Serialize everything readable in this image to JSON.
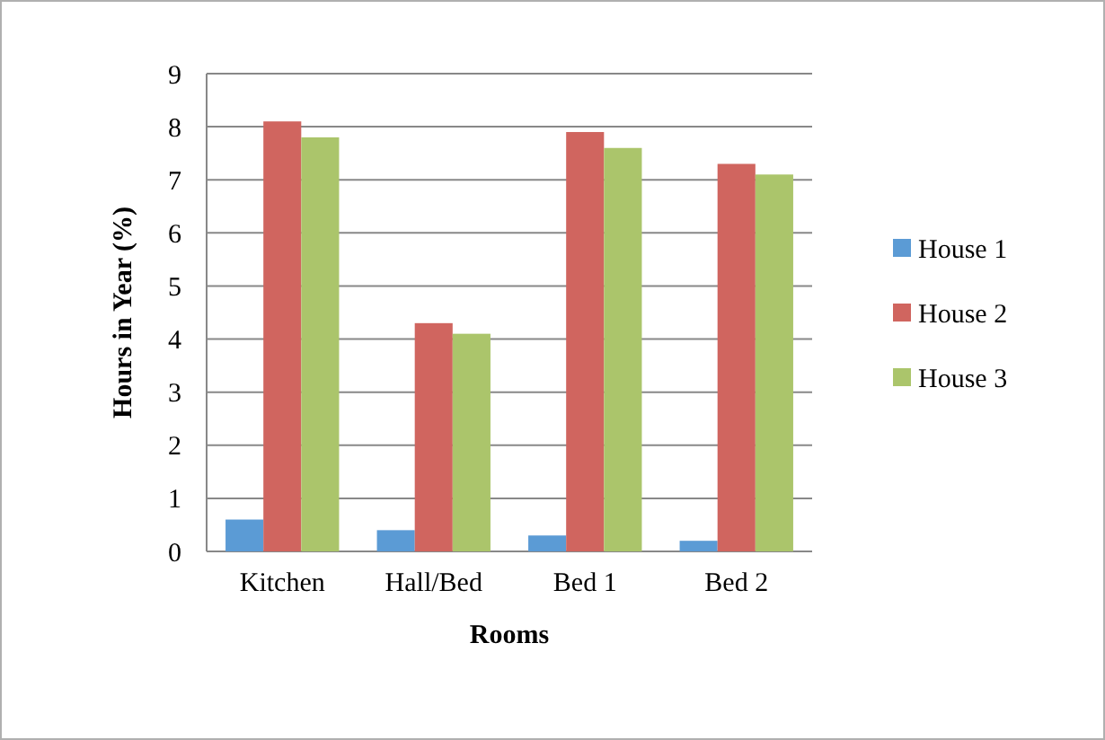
{
  "chart_data": {
    "type": "bar",
    "xlabel": "Rooms",
    "ylabel": "Hours in Year (%)",
    "categories": [
      "Kitchen",
      "Hall/Bed",
      "Bed 1",
      "Bed 2"
    ],
    "series": [
      {
        "name": "House 1",
        "color": "#5b9bd5",
        "values": [
          0.6,
          0.4,
          0.3,
          0.2
        ]
      },
      {
        "name": "House 2",
        "color": "#d0655f",
        "values": [
          8.1,
          4.3,
          7.9,
          7.3
        ]
      },
      {
        "name": "House 3",
        "color": "#abc56b",
        "values": [
          7.8,
          4.1,
          7.6,
          7.1
        ]
      }
    ],
    "ylim": [
      0,
      9
    ],
    "yticks": [
      0,
      1,
      2,
      3,
      4,
      5,
      6,
      7,
      8,
      9
    ],
    "grid": "y",
    "legend": "right"
  }
}
